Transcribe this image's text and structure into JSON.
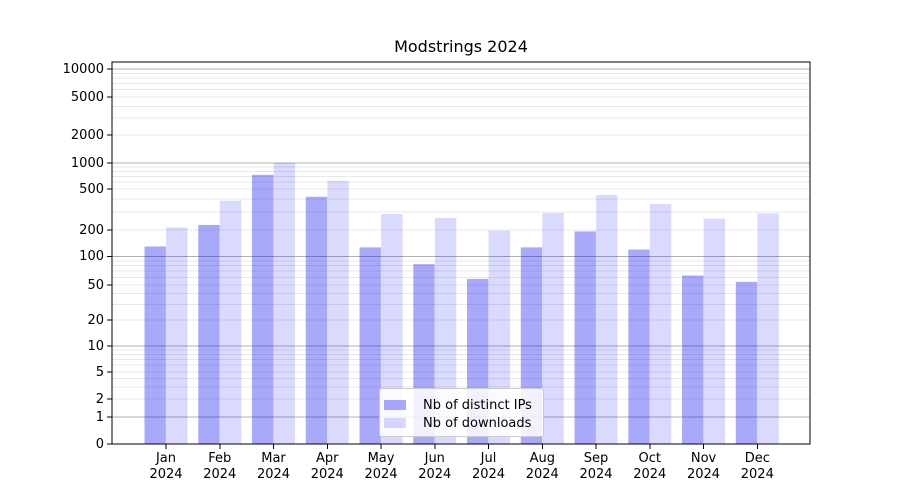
{
  "chart": {
    "title": "Modstrings 2024"
  },
  "chart_data": {
    "type": "bar",
    "title": "Modstrings 2024",
    "categories": [
      "Jan 2024",
      "Feb 2024",
      "Mar 2024",
      "Apr 2024",
      "May 2024",
      "Jun 2024",
      "Jul 2024",
      "Aug 2024",
      "Sep 2024",
      "Oct 2024",
      "Nov 2024",
      "Dec 2024"
    ],
    "x_tick_months": [
      "Jan",
      "Feb",
      "Mar",
      "Apr",
      "May",
      "Jun",
      "Jul",
      "Aug",
      "Sep",
      "Oct",
      "Nov",
      "Dec"
    ],
    "x_tick_year": "2024",
    "series": [
      {
        "name": "Nb of distinct IPs",
        "color": "rgba(10,10,245,0.35)",
        "values": [
          130,
          224,
          730,
          420,
          127,
          83,
          58,
          127,
          193,
          120,
          63,
          54
        ]
      },
      {
        "name": "Nb of downloads",
        "color": "rgba(10,10,245,0.15)",
        "values": [
          212,
          385,
          1005,
          620,
          286,
          262,
          197,
          293,
          437,
          358,
          258,
          290
        ]
      }
    ],
    "y_axis": {
      "scale": "symlog",
      "tick_values": [
        0,
        1,
        2,
        5,
        10,
        20,
        50,
        100,
        200,
        500,
        1000,
        2000,
        5000,
        10000
      ],
      "tick_labels": [
        "0",
        "1",
        "2",
        "5",
        "10",
        "20",
        "50",
        "100",
        "200",
        "500",
        "1000",
        "2000",
        "5000",
        "10000"
      ],
      "ylim": [
        0,
        12000
      ]
    },
    "grid": {
      "enabled": true,
      "major_color": "#b0b0b0",
      "minor_color": "#e8e8e8"
    },
    "legend": {
      "position": "lower center (inside plot)",
      "items": [
        "Nb of distinct IPs",
        "Nb of downloads"
      ]
    }
  }
}
